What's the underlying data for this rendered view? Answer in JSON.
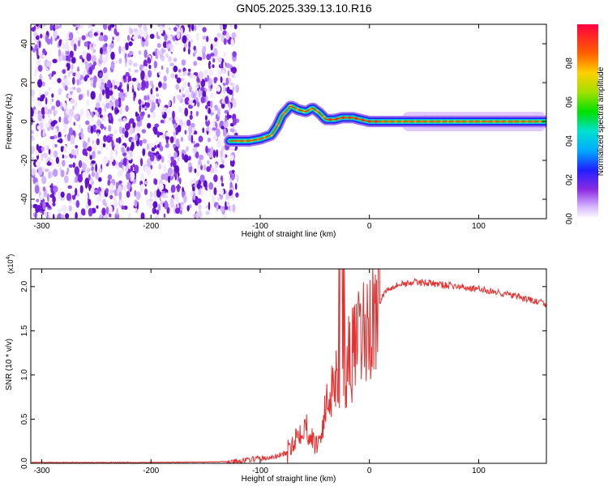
{
  "title": "GN05.2025.339.13.10.R16",
  "colors": {
    "snr_line": "#e53030",
    "axis": "#000000"
  },
  "chart_data": [
    {
      "type": "heatmap",
      "name": "spectrogram",
      "xlabel": "Height of straight line (km)",
      "ylabel": "Frequency (Hz)",
      "xlim": [
        -310,
        162
      ],
      "ylim": [
        -50,
        50
      ],
      "xticks": [
        -300,
        -200,
        -100,
        0,
        100
      ],
      "xtick_labels": [
        "-300",
        "-200",
        "-100",
        "0",
        "100"
      ],
      "yticks": [
        -40,
        -20,
        0,
        20,
        40
      ],
      "ytick_labels": [
        "-40",
        "-20",
        "0",
        "20",
        "40"
      ],
      "noise_region_x": [
        -310,
        -128
      ],
      "ridge": {
        "description_points_x": [
          -128,
          -110,
          -100,
          -90,
          -85,
          -80,
          -72,
          -65,
          -58,
          -52,
          -45,
          -40,
          -32,
          -25,
          -15,
          -8,
          0,
          20,
          60,
          100,
          162
        ],
        "freq_y": [
          -10,
          -10,
          -9,
          -7,
          -3,
          3,
          8,
          6,
          5,
          7,
          4,
          1,
          1,
          2,
          2,
          1,
          0,
          0,
          0,
          0,
          0
        ]
      },
      "colorbar": {
        "label": "Normalized spectral amplitude",
        "ticks": [
          0.0,
          0.2,
          0.4,
          0.6,
          0.8
        ],
        "tick_labels": [
          "0.0",
          "0.2",
          "0.4",
          "0.6",
          "0.8"
        ],
        "range": [
          0,
          1
        ]
      }
    },
    {
      "type": "line",
      "name": "snr",
      "xlabel": "Height of straight line (km)",
      "ylabel": "SNR (10 * v/v)",
      "scale_label": "(x10",
      "scale_exp": "4",
      "scale_close": ")",
      "xlim": [
        -310,
        162
      ],
      "ylim": [
        0,
        2.2
      ],
      "xticks": [
        -300,
        -200,
        -100,
        0,
        100
      ],
      "xtick_labels": [
        "-300",
        "-200",
        "-100",
        "0",
        "100"
      ],
      "yticks": [
        0.0,
        0.5,
        1.0,
        1.5,
        2.0
      ],
      "ytick_labels": [
        "0.0",
        "0.5",
        "1.0",
        "1.5",
        "2.0"
      ],
      "series": [
        {
          "name": "SNR",
          "x": [
            -310,
            -200,
            -150,
            -125,
            -110,
            -100,
            -95,
            -85,
            -75,
            -70,
            -65,
            -60,
            -55,
            -50,
            -45,
            -40,
            -35,
            -30,
            -25,
            -20,
            -15,
            -10,
            -5,
            0,
            5,
            10,
            15,
            20,
            30,
            40,
            50,
            60,
            80,
            100,
            120,
            140,
            162
          ],
          "y": [
            0.01,
            0.01,
            0.015,
            0.02,
            0.04,
            0.06,
            0.05,
            0.08,
            0.12,
            0.25,
            0.35,
            0.45,
            0.35,
            0.2,
            0.3,
            0.6,
            0.9,
            1.0,
            1.1,
            1.15,
            1.25,
            1.35,
            1.45,
            1.55,
            1.7,
            1.85,
            1.95,
            2.0,
            2.03,
            2.05,
            2.05,
            2.03,
            2.0,
            1.97,
            1.93,
            1.87,
            1.8
          ]
        }
      ]
    }
  ]
}
